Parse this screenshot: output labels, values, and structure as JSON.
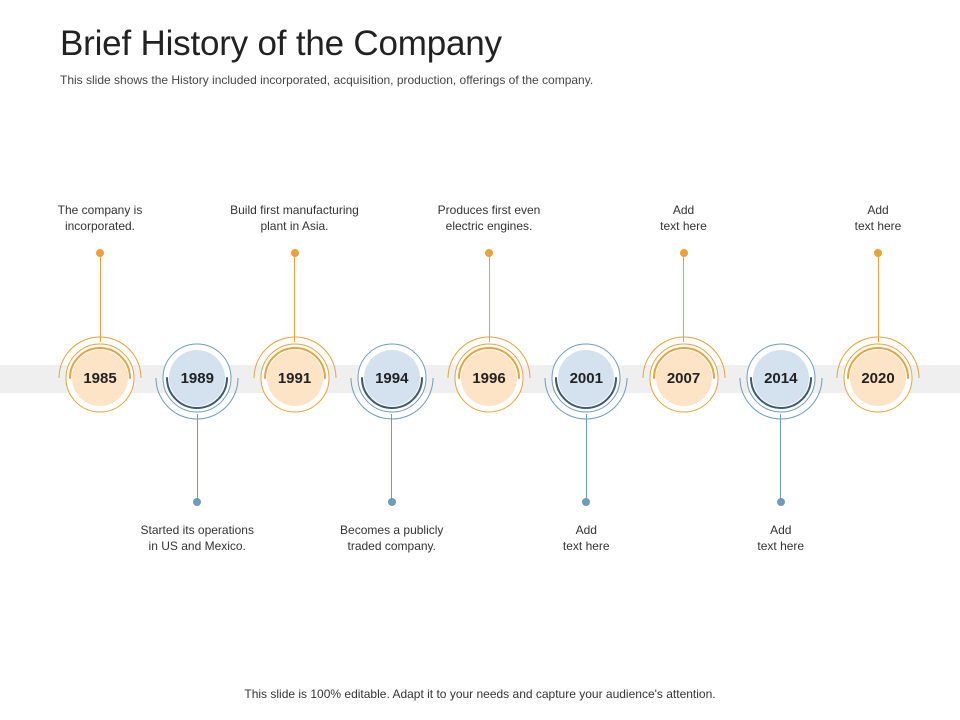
{
  "slide": {
    "title": "Brief History of the Company",
    "subtitle": "This slide shows the History included incorporated,  acquisition, production, offerings  of the company.",
    "footer": "This slide is 100% editable. Adapt it to your needs and capture your audience's attention."
  },
  "colors": {
    "orange_accent": "#e9a23b",
    "orange_fill": "#fde4c6",
    "blue_accent": "#6f9cbb",
    "blue_fill": "#d3e2ee",
    "blue_dark_arc": "#3f5a70",
    "band": "#efefef"
  },
  "timeline": [
    {
      "year": "1985",
      "theme": "orange",
      "text": [
        "The company is",
        "incorporated."
      ]
    },
    {
      "year": "1989",
      "theme": "blue",
      "text": [
        "Started its operations",
        "in US and Mexico."
      ]
    },
    {
      "year": "1991",
      "theme": "orange",
      "text": [
        "Build first manufacturing",
        "plant in Asia."
      ]
    },
    {
      "year": "1994",
      "theme": "blue",
      "text": [
        "Becomes a publicly",
        "traded company."
      ]
    },
    {
      "year": "1996",
      "theme": "orange",
      "text": [
        "Produces first even",
        "electric engines."
      ]
    },
    {
      "year": "2001",
      "theme": "blue",
      "text": [
        "Add",
        "text here"
      ]
    },
    {
      "year": "2007",
      "theme": "orange",
      "text": [
        "Add",
        "text here"
      ]
    },
    {
      "year": "2014",
      "theme": "blue",
      "text": [
        "Add",
        "text here"
      ]
    },
    {
      "year": "2020",
      "theme": "orange",
      "text": [
        "Add",
        "text here"
      ]
    }
  ]
}
